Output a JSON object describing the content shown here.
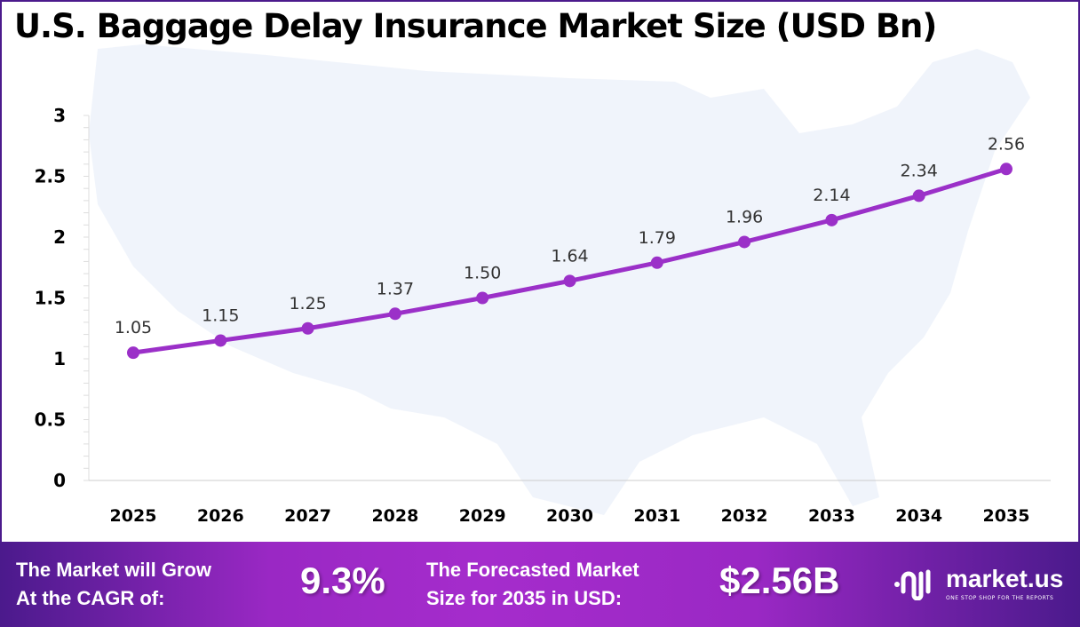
{
  "chart_data": {
    "type": "line",
    "title": "U.S. Baggage Delay Insurance Market Size (USD Bn)",
    "categories": [
      "2025",
      "2026",
      "2027",
      "2028",
      "2029",
      "2030",
      "2031",
      "2032",
      "2033",
      "2034",
      "2035"
    ],
    "values": [
      1.05,
      1.15,
      1.25,
      1.37,
      1.5,
      1.64,
      1.79,
      1.96,
      2.14,
      2.34,
      2.56
    ],
    "data_labels": [
      "1.05",
      "1.15",
      "1.25",
      "1.37",
      "1.50",
      "1.64",
      "1.79",
      "1.96",
      "2.14",
      "2.34",
      "2.56"
    ],
    "yticks": [
      "0",
      "0.5",
      "1",
      "1.5",
      "2",
      "2.5",
      "3"
    ],
    "ylim": [
      0,
      3
    ],
    "xlabel": "",
    "ylabel": "",
    "grid": false,
    "line_color": "#9b30c8",
    "background_map": "us-map-silhouette"
  },
  "footer": {
    "cagr_label_1": "The Market will Grow",
    "cagr_label_2": "At the CAGR of:",
    "cagr_value": "9.3%",
    "forecast_label_1": "The Forecasted Market",
    "forecast_label_2": "Size for 2035 in USD:",
    "forecast_value": "$2.56B",
    "logo_name": "market.us",
    "logo_tagline": "ONE STOP SHOP FOR THE REPORTS"
  }
}
